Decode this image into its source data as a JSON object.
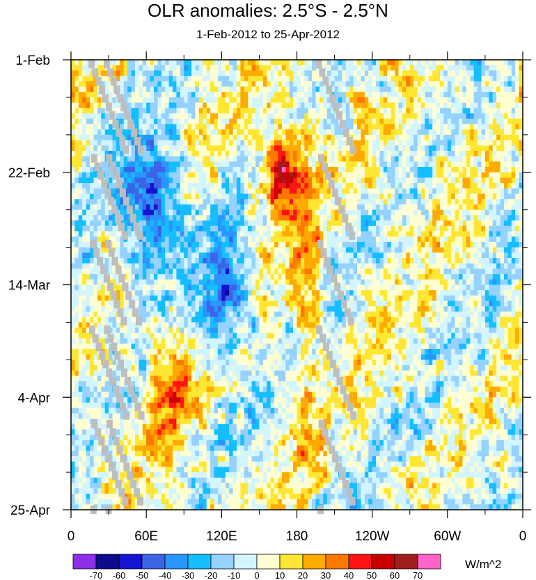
{
  "chart_data": {
    "type": "heatmap",
    "title": "OLR anomalies: 2.5°S - 2.5°N",
    "subtitle": "1-Feb-2012 to 25-Apr-2012",
    "x_tick_labels": [
      "0",
      "60E",
      "120E",
      "180",
      "120W",
      "60W",
      "0"
    ],
    "x_tick_lon": [
      0,
      60,
      120,
      180,
      240,
      300,
      360
    ],
    "xlim": [
      0,
      360
    ],
    "y_tick_labels": [
      "1-Feb",
      "22-Feb",
      "14-Mar",
      "4-Apr",
      "25-Apr"
    ],
    "y_tick_day": [
      0,
      21,
      42,
      63,
      84
    ],
    "ylim": [
      0,
      84
    ],
    "colorbar": {
      "units": "W/m^2",
      "levels": [
        -70,
        -60,
        -50,
        -40,
        -30,
        -20,
        -10,
        0,
        10,
        20,
        30,
        40,
        50,
        60,
        70
      ],
      "level_labels": [
        "-70",
        "-60",
        "-50",
        "-40",
        "-30",
        "-20",
        "-10",
        "0",
        "10",
        "20",
        "30",
        "40",
        "50",
        "60",
        "70"
      ],
      "colors": [
        "#8c2fe8",
        "#0c0c8c",
        "#1414d2",
        "#3c64e6",
        "#2896ff",
        "#14beff",
        "#96d2ff",
        "#d2f5ff",
        "#ffffd2",
        "#ffe632",
        "#ffaa00",
        "#ff7800",
        "#ff1414",
        "#c80000",
        "#a01e1e",
        "#ff64c8"
      ]
    },
    "missing_color": "#bebebe",
    "features": [
      {
        "name": "positive-anomaly-dateline-feb",
        "lon": [
          150,
          185
        ],
        "day": [
          12,
          30
        ],
        "value": 60
      },
      {
        "name": "positive-anomaly-indian-ocean-mar",
        "lon": [
          55,
          100
        ],
        "day": [
          48,
          75
        ],
        "value": 30
      },
      {
        "name": "negative-anomaly-maritime-continent",
        "lon": [
          100,
          145
        ],
        "day": [
          34,
          58
        ],
        "value": -45
      },
      {
        "name": "negative-anomaly-indian-ocean-feb",
        "lon": [
          35,
          95
        ],
        "day": [
          15,
          40
        ],
        "value": -50
      },
      {
        "name": "positive-anomaly-central-pacific-band",
        "lon": [
          175,
          200
        ],
        "day": [
          0,
          84
        ],
        "value": 25
      }
    ]
  }
}
